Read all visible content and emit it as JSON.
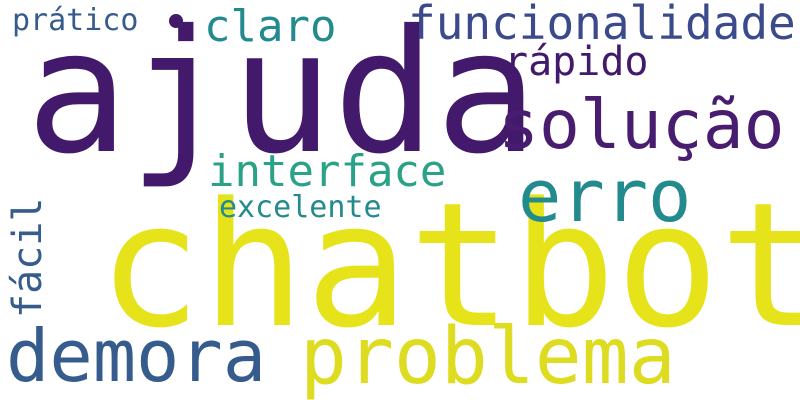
{
  "words": {
    "chatbot": "chatbot",
    "ajuda": "ajuda",
    "problema": "problema",
    "demora": "demora",
    "erro": "erro",
    "solucao": "solução",
    "funcionalidade": "funcionalidade",
    "interface": "interface",
    "rapido": "rápido",
    "claro": "claro",
    "excelente": "excelente",
    "pratico": "prático",
    "facil": "fácil"
  },
  "colors": {
    "background": "#ffffff",
    "yellow": "#e7e31a",
    "purple": "#43196b",
    "indigo": "#3b4a8a",
    "blue": "#365c8d",
    "teal": "#238a8d",
    "green": "#2aa287",
    "lightyellow": "#dddc20",
    "purple2": "#481c6e"
  }
}
